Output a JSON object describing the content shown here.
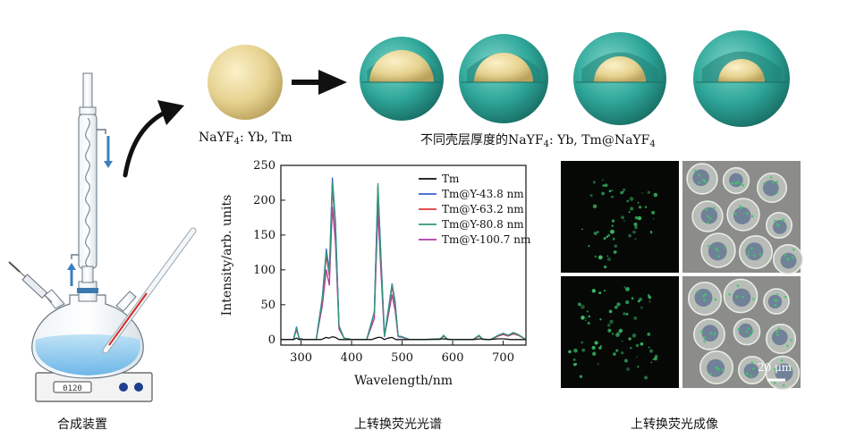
{
  "labels": {
    "core_label": {
      "base": "NaYF",
      "sub": "4",
      "rest": ": Yb, Tm"
    },
    "shell_label": {
      "prefix": "不同壳层厚度的NaYF",
      "sub1": "4",
      "mid": ": Yb, Tm@NaYF",
      "sub2": "4"
    },
    "caption_apparatus": "合成装置",
    "caption_spectrum": "上转换荧光光谱",
    "caption_imaging": "上转换荧光成像",
    "scale_bar": "20 μm",
    "stirrer_display": "0120"
  },
  "colors": {
    "core": "#e8d79a",
    "shell": "#2fa79a",
    "shell_dark": "#1f7f74",
    "liquid": "#8ec9ee"
  },
  "icons": {
    "apparatus": "three-neck-flask-reflux-icon",
    "arrow_curved": "curved-arrow-icon",
    "arrow_straight": "arrow-right-icon"
  },
  "chart_data": {
    "type": "line",
    "xlabel": "Wavelength/nm",
    "ylabel": "Intensity/arb. units",
    "xlim": [
      260,
      745
    ],
    "ylim": [
      -8,
      250
    ],
    "xticks": [
      300,
      400,
      500,
      600,
      700
    ],
    "yticks": [
      0,
      50,
      100,
      150,
      200,
      250
    ],
    "legend_position": "top-right",
    "grid": false,
    "series": [
      {
        "name": "Tm",
        "color": "#111111",
        "x": [
          260,
          285,
          291,
          296,
          305,
          340,
          350,
          355,
          362,
          368,
          375,
          400,
          440,
          452,
          458,
          465,
          472,
          480,
          488,
          500,
          540,
          580,
          600,
          640,
          655,
          670,
          690,
          700,
          715,
          745
        ],
        "y": [
          0,
          0,
          2,
          0,
          0,
          0,
          3,
          2,
          4,
          3,
          0,
          0,
          0,
          3,
          3,
          0,
          2,
          3,
          0,
          0,
          0,
          1,
          0,
          0,
          1,
          0,
          1,
          1,
          0,
          0
        ]
      },
      {
        "name": "Tm@Y-43.8 nm",
        "color": "#3a5fd8",
        "x": [
          260,
          285,
          291,
          296,
          305,
          330,
          342,
          350,
          356,
          362,
          368,
          375,
          385,
          400,
          430,
          445,
          452,
          458,
          465,
          472,
          480,
          486,
          492,
          500,
          515,
          540,
          575,
          582,
          590,
          620,
          640,
          652,
          660,
          675,
          690,
          700,
          710,
          720,
          730,
          745
        ],
        "y": [
          0,
          0,
          18,
          2,
          0,
          0,
          60,
          130,
          100,
          232,
          170,
          20,
          2,
          0,
          0,
          40,
          220,
          120,
          5,
          40,
          80,
          55,
          5,
          4,
          0,
          0,
          0,
          6,
          0,
          0,
          0,
          6,
          0,
          0,
          6,
          9,
          6,
          10,
          7,
          0
        ]
      },
      {
        "name": "Tm@Y-63.2 nm",
        "color": "#d83a3a",
        "x": [
          260,
          285,
          291,
          296,
          305,
          330,
          342,
          350,
          356,
          362,
          368,
          375,
          385,
          400,
          430,
          445,
          452,
          458,
          465,
          472,
          480,
          486,
          492,
          500,
          515,
          540,
          575,
          582,
          590,
          620,
          640,
          652,
          660,
          675,
          690,
          700,
          710,
          720,
          730,
          745
        ],
        "y": [
          0,
          0,
          16,
          2,
          0,
          0,
          55,
          120,
          92,
          218,
          160,
          18,
          2,
          0,
          0,
          38,
          210,
          112,
          5,
          38,
          76,
          50,
          5,
          4,
          0,
          0,
          0,
          5,
          0,
          0,
          0,
          5,
          0,
          0,
          5,
          8,
          5,
          9,
          6,
          0
        ]
      },
      {
        "name": "Tm@Y-80.8 nm",
        "color": "#2f9a7a",
        "x": [
          260,
          285,
          291,
          296,
          305,
          330,
          342,
          350,
          356,
          362,
          368,
          375,
          385,
          400,
          430,
          445,
          452,
          458,
          465,
          472,
          480,
          486,
          492,
          500,
          515,
          540,
          575,
          582,
          590,
          620,
          640,
          652,
          660,
          675,
          690,
          700,
          710,
          720,
          730,
          745
        ],
        "y": [
          0,
          0,
          17,
          2,
          0,
          0,
          58,
          126,
          96,
          226,
          166,
          19,
          2,
          0,
          0,
          39,
          224,
          116,
          5,
          39,
          79,
          53,
          5,
          4,
          0,
          0,
          0,
          6,
          0,
          0,
          0,
          6,
          0,
          0,
          6,
          9,
          6,
          10,
          7,
          0
        ]
      },
      {
        "name": "Tm@Y-100.7 nm",
        "color": "#b03aa8",
        "x": [
          260,
          285,
          291,
          296,
          305,
          330,
          342,
          350,
          356,
          362,
          368,
          375,
          385,
          400,
          430,
          445,
          452,
          458,
          465,
          472,
          480,
          486,
          492,
          500,
          515,
          540,
          575,
          582,
          590,
          620,
          640,
          652,
          660,
          675,
          690,
          700,
          710,
          720,
          730,
          745
        ],
        "y": [
          0,
          0,
          14,
          2,
          0,
          0,
          48,
          100,
          78,
          190,
          140,
          15,
          2,
          0,
          0,
          30,
          185,
          96,
          4,
          32,
          64,
          42,
          4,
          3,
          0,
          0,
          0,
          5,
          0,
          0,
          0,
          5,
          0,
          0,
          5,
          7,
          5,
          8,
          6,
          0
        ]
      }
    ]
  }
}
